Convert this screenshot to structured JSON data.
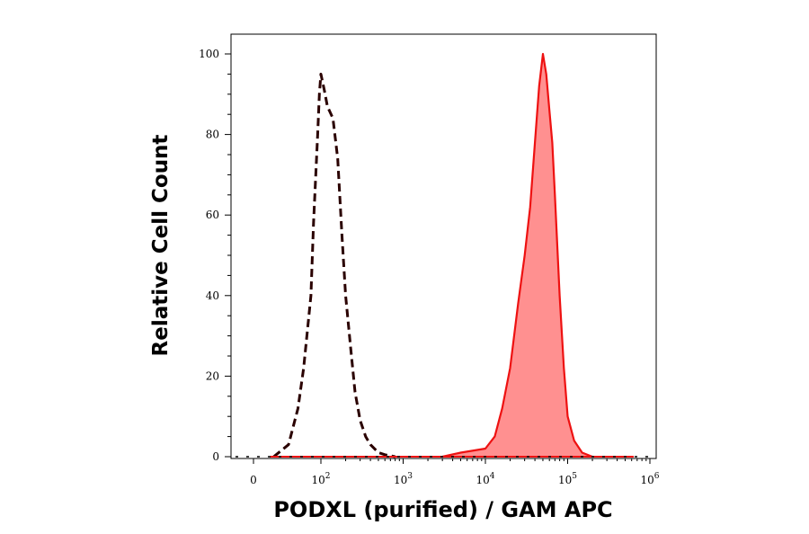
{
  "chart_data": {
    "type": "area",
    "xlabel": "PODXL (purified) / GAM APC",
    "ylabel": "Relative Cell Count",
    "ylim": [
      0,
      100
    ],
    "xscale": "biexponential",
    "x_ticks": [
      {
        "value": 0,
        "base": "0",
        "exp": ""
      },
      {
        "value": 100,
        "base": "10",
        "exp": "2"
      },
      {
        "value": 1000,
        "base": "10",
        "exp": "3"
      },
      {
        "value": 10000,
        "base": "10",
        "exp": "4"
      },
      {
        "value": 100000,
        "base": "10",
        "exp": "5"
      },
      {
        "value": 1000000,
        "base": "10",
        "exp": "6"
      }
    ],
    "y_ticks": [
      0,
      20,
      40,
      60,
      80,
      100
    ],
    "grid": false,
    "legend": "none",
    "series": [
      {
        "style": "dashed-line",
        "color": "#2a0000",
        "x": [
          3,
          10,
          20,
          30,
          40,
          50,
          60,
          70,
          80,
          90,
          100,
          110,
          120,
          140,
          160,
          180,
          200,
          230,
          260,
          300,
          350,
          400,
          500,
          600,
          800
        ],
        "y": [
          0,
          3,
          12,
          22,
          32,
          40,
          58,
          70,
          80,
          90,
          95,
          91,
          87,
          84,
          74,
          55,
          40,
          27,
          16,
          9,
          5,
          3,
          1,
          0.5,
          0
        ]
      },
      {
        "style": "filled",
        "color": "#ee1111",
        "fill": "#ff9090",
        "x": [
          3000,
          5000,
          10000,
          13000,
          16000,
          20000,
          25000,
          30000,
          35000,
          40000,
          45000,
          50000,
          55000,
          60000,
          65000,
          70000,
          80000,
          90000,
          100000,
          120000,
          150000,
          200000
        ],
        "y": [
          0,
          1,
          2,
          5,
          12,
          22,
          38,
          50,
          62,
          78,
          92,
          100,
          95,
          86,
          78,
          65,
          40,
          22,
          10,
          4,
          1,
          0
        ]
      }
    ]
  }
}
